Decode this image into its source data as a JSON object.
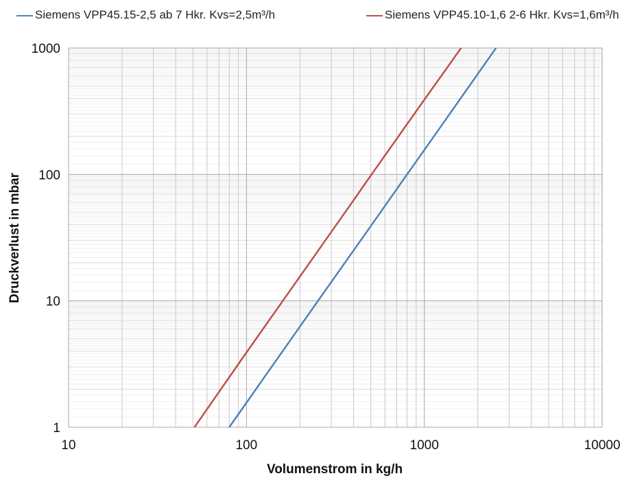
{
  "chart_data": {
    "type": "line",
    "xscale": "log",
    "yscale": "log",
    "xlim": [
      10,
      10000
    ],
    "ylim": [
      1,
      1000
    ],
    "xlabel": "Volumenstrom in kg/h",
    "ylabel": "Druckverlust in mbar",
    "x_ticks": [
      "10",
      "100",
      "1000",
      "10000"
    ],
    "y_ticks": [
      "1",
      "10",
      "100",
      "1000"
    ],
    "grid": true,
    "legend_position": "top",
    "series": [
      {
        "name": "Siemens VPP45.15-2,5 ab 7 Hkr. Kvs=2,5m³/h",
        "color": "#4f81bd",
        "x": [
          80,
          250,
          500,
          800,
          1000,
          1600,
          2530
        ],
        "y": [
          1,
          9.8,
          39,
          100,
          156,
          400,
          1000
        ]
      },
      {
        "name": "Siemens VPP45.10-1,6 2-6 Hkr. Kvs=1,6m³/h",
        "color": "#c0504d",
        "x": [
          51,
          100,
          200,
          400,
          500,
          800,
          1000,
          1610
        ],
        "y": [
          1,
          3.9,
          15.6,
          62.5,
          98,
          250,
          390,
          1000
        ]
      }
    ]
  }
}
